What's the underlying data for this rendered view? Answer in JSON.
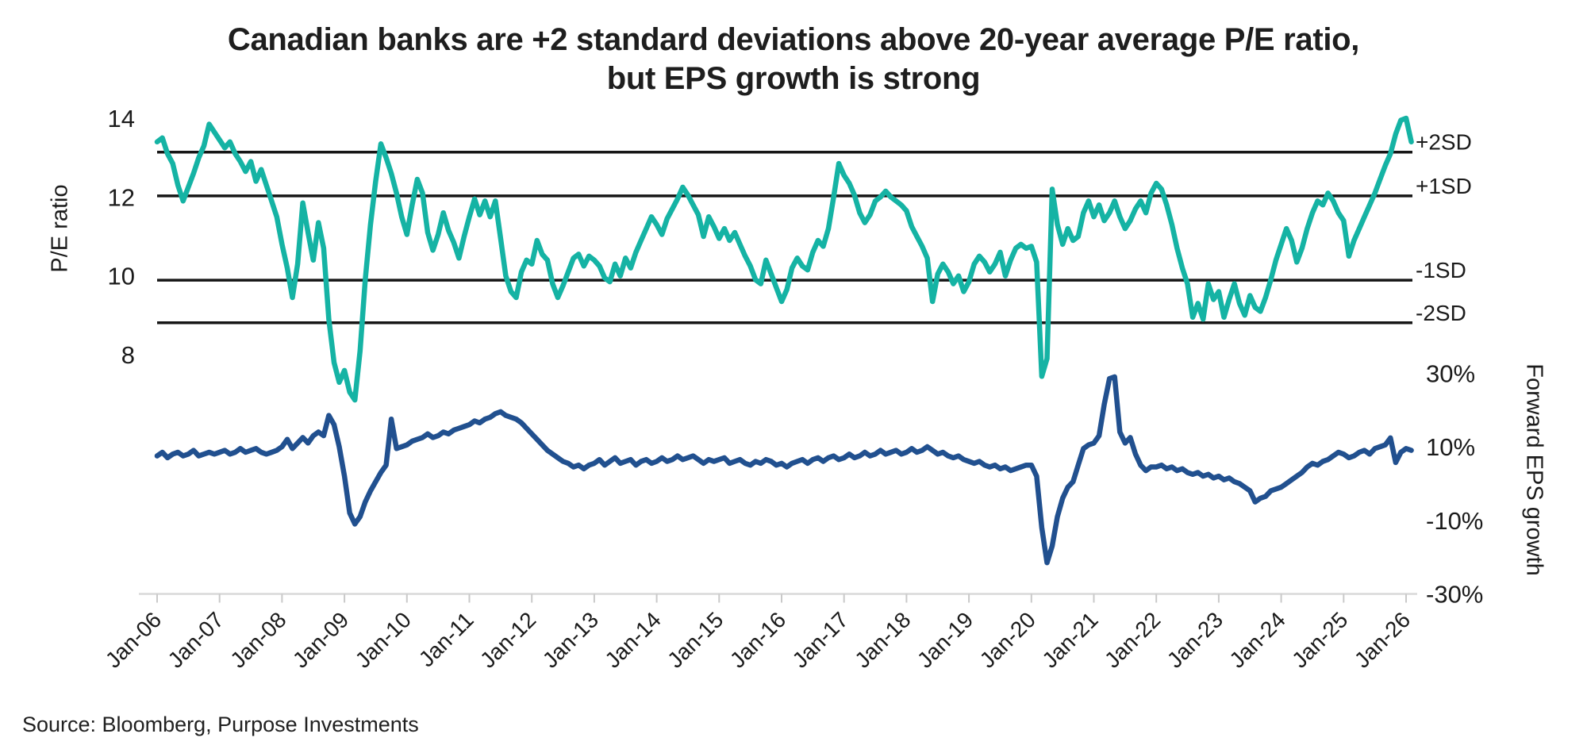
{
  "title": {
    "line1": "Canadian banks are +2 standard deviations above 20-year average P/E ratio,",
    "line2": "but EPS growth is strong"
  },
  "source": "Source: Bloomberg, Purpose Investments",
  "colors": {
    "pe_line": "#15B3A4",
    "eps_line": "#21508F",
    "sd_line": "#161616",
    "x_axis": "#d9d9d9",
    "x_tick": "#c9c9c9",
    "text": "#1b1b1b"
  },
  "chart_data": {
    "type": "line",
    "title": "Canadian banks are +2 standard deviations above 20-year average P/E ratio, but EPS growth is strong",
    "x_monthly_start": "2006-01",
    "x_monthly_end": "2026-02",
    "x_tick_labels": [
      "Jan-06",
      "Jan-07",
      "Jan-08",
      "Jan-09",
      "Jan-10",
      "Jan-11",
      "Jan-12",
      "Jan-13",
      "Jan-14",
      "Jan-15",
      "Jan-16",
      "Jan-17",
      "Jan-18",
      "Jan-19",
      "Jan-20",
      "Jan-21",
      "Jan-22",
      "Jan-23",
      "Jan-24",
      "Jan-25",
      "Jan-26"
    ],
    "left_axis": {
      "label": "P/E ratio",
      "ticks": [
        14,
        12,
        10,
        8
      ],
      "range": [
        6.5,
        14.2
      ]
    },
    "right_axis": {
      "label": "Forward EPS growth",
      "ticks": [
        "30%",
        "10%",
        "-10%",
        "-30%"
      ],
      "tick_values": [
        30,
        10,
        -10,
        -30
      ],
      "range": [
        -34,
        31
      ]
    },
    "sd_lines": [
      {
        "label": "+2SD",
        "pe": 13.14
      },
      {
        "label": "+1SD",
        "pe": 12.03
      },
      {
        "label": "-1SD",
        "pe": 9.89
      },
      {
        "label": "-2SD",
        "pe": 8.81
      }
    ],
    "grid": "off",
    "legend": "none",
    "series": [
      {
        "name": "P/E ratio",
        "axis": "left",
        "color": "#15B3A4",
        "values": [
          13.4,
          13.5,
          13.1,
          12.85,
          12.3,
          11.9,
          12.25,
          12.6,
          13.0,
          13.3,
          13.85,
          13.65,
          13.45,
          13.25,
          13.4,
          13.1,
          12.9,
          12.65,
          12.9,
          12.4,
          12.7,
          12.3,
          11.9,
          11.5,
          10.8,
          10.2,
          9.45,
          10.3,
          11.85,
          11.1,
          10.4,
          11.35,
          10.7,
          8.9,
          7.8,
          7.3,
          7.6,
          7.05,
          6.85,
          8.1,
          9.9,
          11.3,
          12.4,
          13.35,
          13.0,
          12.6,
          12.1,
          11.5,
          11.05,
          11.8,
          12.45,
          12.1,
          11.1,
          10.65,
          11.05,
          11.6,
          11.15,
          10.85,
          10.45,
          11.0,
          11.5,
          11.95,
          11.55,
          11.9,
          11.5,
          11.9,
          10.95,
          10.0,
          9.6,
          9.45,
          10.1,
          10.4,
          10.3,
          10.9,
          10.55,
          10.4,
          9.8,
          9.45,
          9.75,
          10.1,
          10.45,
          10.55,
          10.25,
          10.5,
          10.4,
          10.25,
          9.95,
          9.85,
          10.3,
          10.0,
          10.45,
          10.2,
          10.6,
          10.9,
          11.2,
          11.5,
          11.3,
          11.05,
          11.45,
          11.7,
          11.95,
          12.25,
          12.05,
          11.8,
          11.55,
          11.0,
          11.5,
          11.25,
          10.95,
          11.2,
          10.9,
          11.1,
          10.8,
          10.5,
          10.25,
          9.9,
          9.8,
          10.4,
          10.05,
          9.7,
          9.35,
          9.65,
          10.2,
          10.45,
          10.25,
          10.15,
          10.6,
          10.9,
          10.75,
          11.2,
          12.0,
          12.85,
          12.55,
          12.35,
          12.05,
          11.6,
          11.35,
          11.55,
          11.9,
          12.0,
          12.15,
          12.0,
          11.9,
          11.8,
          11.65,
          11.25,
          11.0,
          10.75,
          10.45,
          9.35,
          10.05,
          10.3,
          10.1,
          9.8,
          10.0,
          9.6,
          9.85,
          10.3,
          10.5,
          10.35,
          10.1,
          10.3,
          10.6,
          10.0,
          10.4,
          10.7,
          10.8,
          10.7,
          10.75,
          10.35,
          7.45,
          7.9,
          12.2,
          11.3,
          10.8,
          11.2,
          10.9,
          11.0,
          11.6,
          11.9,
          11.5,
          11.8,
          11.4,
          11.6,
          11.9,
          11.5,
          11.2,
          11.4,
          11.7,
          11.9,
          11.6,
          12.1,
          12.35,
          12.2,
          11.8,
          11.3,
          10.7,
          10.2,
          9.8,
          8.95,
          9.3,
          8.9,
          9.8,
          9.4,
          9.6,
          8.95,
          9.4,
          9.8,
          9.3,
          9.0,
          9.5,
          9.2,
          9.1,
          9.45,
          9.9,
          10.4,
          10.8,
          11.2,
          10.9,
          10.35,
          10.7,
          11.2,
          11.6,
          11.9,
          11.8,
          12.1,
          11.9,
          11.6,
          11.4,
          10.5,
          10.9,
          11.2,
          11.5,
          11.8,
          12.1,
          12.45,
          12.8,
          13.1,
          13.6,
          13.95,
          14.0,
          13.4
        ]
      },
      {
        "name": "Forward EPS growth (%)",
        "axis": "right",
        "color": "#21508F",
        "values": [
          7.5,
          8.5,
          7.0,
          8.0,
          8.5,
          7.5,
          8.0,
          9.0,
          7.5,
          8.0,
          8.5,
          8.0,
          8.5,
          9.0,
          8.0,
          8.5,
          9.5,
          8.5,
          9.0,
          9.5,
          8.5,
          8.0,
          8.5,
          9.0,
          10.0,
          12.0,
          9.5,
          11.0,
          12.5,
          11.0,
          13.0,
          14.0,
          13.0,
          18.5,
          16.0,
          10.0,
          2.0,
          -8.0,
          -11.0,
          -9.0,
          -5.0,
          -2.0,
          0.5,
          3.0,
          5.0,
          17.5,
          9.5,
          10.0,
          10.5,
          11.5,
          12.0,
          12.5,
          13.5,
          12.5,
          13.0,
          14.0,
          13.5,
          14.5,
          15.0,
          15.5,
          16.0,
          17.0,
          16.5,
          17.5,
          18.0,
          19.0,
          19.5,
          18.5,
          18.0,
          17.5,
          16.5,
          15.0,
          13.5,
          12.0,
          10.5,
          9.0,
          8.0,
          7.0,
          6.0,
          5.5,
          4.5,
          5.0,
          4.0,
          5.0,
          5.5,
          6.5,
          5.0,
          6.0,
          7.0,
          5.5,
          6.0,
          6.5,
          5.0,
          6.0,
          6.5,
          5.5,
          6.0,
          7.0,
          6.0,
          6.5,
          7.5,
          6.5,
          7.0,
          7.5,
          6.5,
          5.5,
          6.5,
          6.0,
          6.5,
          7.0,
          5.5,
          6.0,
          6.5,
          5.5,
          5.0,
          6.0,
          5.5,
          6.5,
          6.0,
          5.0,
          5.5,
          4.5,
          5.5,
          6.0,
          6.5,
          5.5,
          6.5,
          7.0,
          6.0,
          7.0,
          7.5,
          6.5,
          7.0,
          8.0,
          7.0,
          7.5,
          8.5,
          7.5,
          8.0,
          9.0,
          8.0,
          8.5,
          9.0,
          8.0,
          8.5,
          9.5,
          8.5,
          9.0,
          10.0,
          9.0,
          8.0,
          8.5,
          7.5,
          7.0,
          7.5,
          6.5,
          6.0,
          5.5,
          6.0,
          5.0,
          4.5,
          5.0,
          4.0,
          4.5,
          3.5,
          4.0,
          4.5,
          5.0,
          5.0,
          2.0,
          -12.0,
          -21.5,
          -17.0,
          -9.0,
          -4.0,
          -1.0,
          0.5,
          5.0,
          9.5,
          10.5,
          11.0,
          13.0,
          21.5,
          28.5,
          29.0,
          14.0,
          11.0,
          12.5,
          8.0,
          5.0,
          3.5,
          4.5,
          4.5,
          5.0,
          4.0,
          4.5,
          3.5,
          4.0,
          3.0,
          2.5,
          3.0,
          2.0,
          2.5,
          1.5,
          2.0,
          1.0,
          1.5,
          0.5,
          0.0,
          -1.0,
          -2.0,
          -5.0,
          -4.0,
          -3.5,
          -2.0,
          -1.5,
          -1.0,
          0.0,
          1.0,
          2.0,
          3.0,
          4.5,
          5.5,
          5.0,
          6.0,
          6.5,
          7.5,
          8.5,
          8.0,
          7.0,
          7.5,
          8.5,
          9.0,
          8.0,
          9.5,
          10.0,
          10.5,
          12.4,
          5.7,
          8.5,
          9.5,
          9.0
        ]
      }
    ]
  }
}
